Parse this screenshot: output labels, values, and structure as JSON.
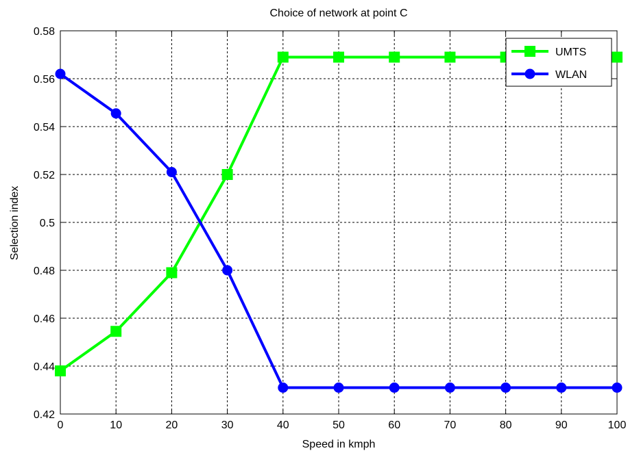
{
  "chart_data": {
    "type": "line",
    "title": "Choice of network at point C",
    "xlabel": "Speed in kmph",
    "ylabel": "Selection index",
    "xlim": [
      0,
      100
    ],
    "ylim": [
      0.42,
      0.58
    ],
    "grid": true,
    "legend_position": "top-right",
    "x_ticks": [
      "0",
      "10",
      "20",
      "30",
      "40",
      "50",
      "60",
      "70",
      "80",
      "90",
      "100"
    ],
    "y_ticks": [
      "0.42",
      "0.44",
      "0.46",
      "0.48",
      "0.5",
      "0.52",
      "0.54",
      "0.56",
      "0.58"
    ],
    "x": [
      0,
      10,
      20,
      30,
      40,
      50,
      60,
      70,
      80,
      90,
      100
    ],
    "series": [
      {
        "name": "UMTS",
        "color": "#00ff00",
        "marker": "square",
        "values": [
          0.438,
          0.4545,
          0.479,
          0.52,
          0.569,
          0.569,
          0.569,
          0.569,
          0.569,
          0.569,
          0.569
        ]
      },
      {
        "name": "WLAN",
        "color": "#0000ff",
        "marker": "circle",
        "values": [
          0.562,
          0.5455,
          0.521,
          0.48,
          0.431,
          0.431,
          0.431,
          0.431,
          0.431,
          0.431,
          0.431
        ]
      }
    ]
  }
}
